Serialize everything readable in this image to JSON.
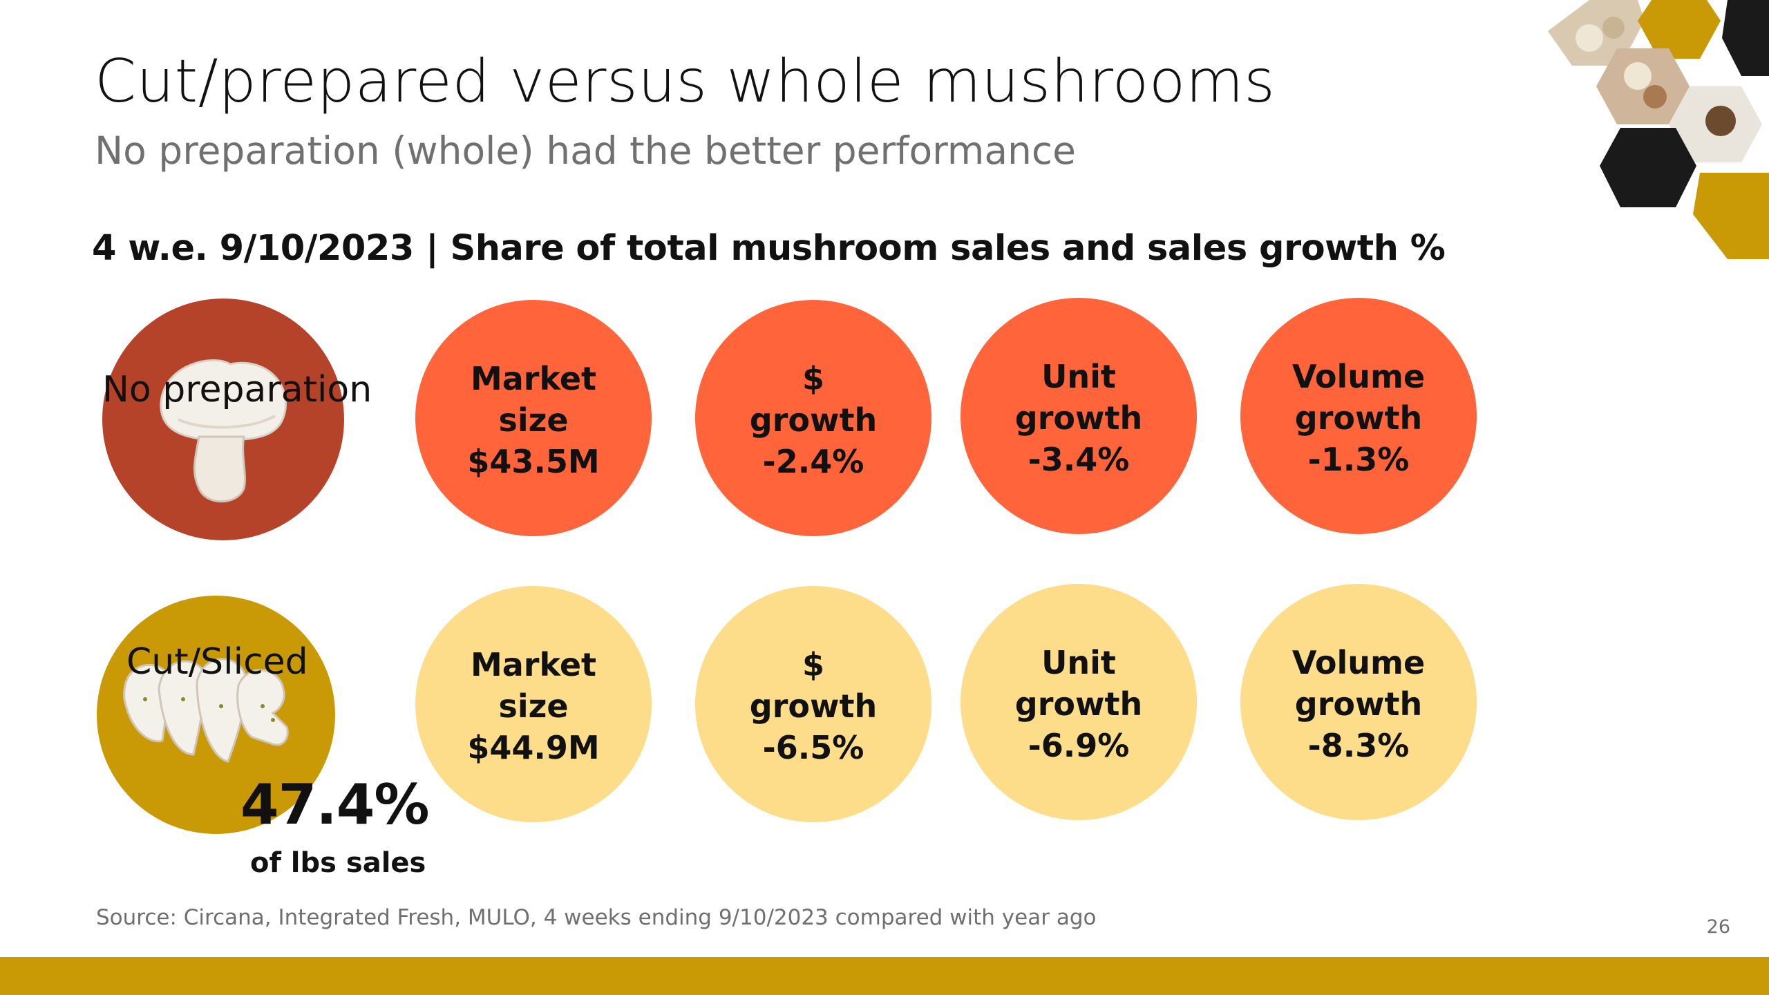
{
  "slide": {
    "title": "Cut/prepared versus whole mushrooms",
    "subtitle": "No preparation (whole) had the better performance",
    "section_heading": "4 w.e. 9/10/2023 | Share of total mushroom sales and sales growth %",
    "source": "Source: Circana, Integrated Fresh, MULO, 4 weeks ending 9/10/2023 compared with year ago",
    "page_number": "26"
  },
  "rows": [
    {
      "category": "No preparation",
      "category_color": "#b5432a",
      "circle_color": "#ff643a",
      "metrics": [
        {
          "line1": "Market",
          "line2": "size",
          "value": "$43.5M"
        },
        {
          "line1": "$",
          "line2": "growth",
          "value": "-2.4%"
        },
        {
          "line1": "Unit",
          "line2": "growth",
          "value": "-3.4%"
        },
        {
          "line1": "Volume",
          "line2": "growth",
          "value": "-1.3%"
        }
      ]
    },
    {
      "category": "Cut/Sliced",
      "category_color": "#c99a06",
      "circle_color": "#fddc8a",
      "share_value": "47.4%",
      "share_label": "of lbs sales",
      "metrics": [
        {
          "line1": "Market",
          "line2": "size",
          "value": "$44.9M"
        },
        {
          "line1": "$",
          "line2": "growth",
          "value": "-6.5%"
        },
        {
          "line1": "Unit",
          "line2": "growth",
          "value": "-6.9%"
        },
        {
          "line1": "Volume",
          "line2": "growth",
          "value": "-8.3%"
        }
      ]
    }
  ],
  "colors": {
    "accent_gold": "#c99a06",
    "accent_orange": "#ff643a",
    "accent_light_yellow": "#fddc8a",
    "hex_dark": "#1a1a1a"
  },
  "icons": [
    "whole-mushroom-icon",
    "sliced-mushroom-icon",
    "mushroom-photo-hexagons"
  ]
}
